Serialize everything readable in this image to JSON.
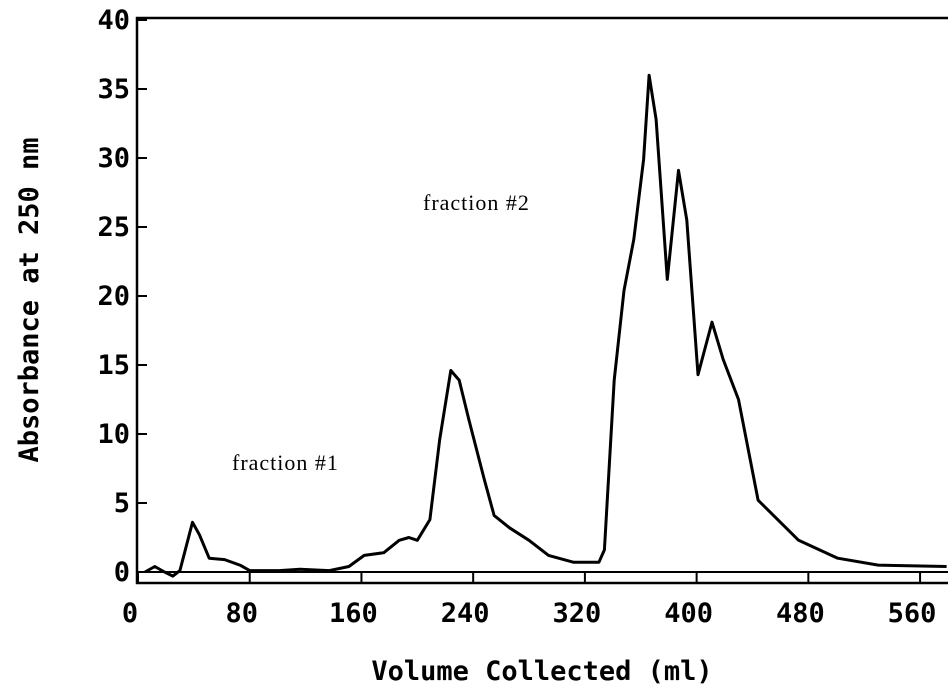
{
  "chart_data": {
    "type": "line",
    "x_label": "Volume Collected (ml)",
    "y_label": "Absorbance at 250 nm",
    "annotations": [
      "fraction #1",
      "fraction #2"
    ],
    "series": [
      {
        "name": "absorbance",
        "color": "#000000",
        "x": [
          5,
          12,
          19,
          25,
          30,
          39,
          44,
          51,
          62,
          73,
          80,
          101,
          116,
          137,
          151,
          162,
          176,
          187,
          194,
          200,
          209,
          216,
          224,
          230,
          237,
          248,
          255,
          266,
          280,
          294,
          312,
          330,
          334,
          341,
          348,
          355,
          362,
          366,
          371,
          379,
          387,
          393,
          401,
          411,
          419,
          430,
          444,
          473,
          501,
          530,
          579
        ],
        "values": [
          0,
          0.4,
          0,
          -0.3,
          0.1,
          3.6,
          2.7,
          1,
          0.9,
          0.5,
          0.1,
          0.1,
          0.2,
          0.1,
          0.4,
          1.2,
          1.4,
          2.3,
          2.5,
          2.3,
          3.8,
          9.6,
          14.6,
          13.9,
          11,
          6.7,
          4.1,
          3.2,
          2.3,
          1.2,
          0.7,
          0.7,
          1.6,
          13.9,
          20.4,
          24.1,
          29.9,
          36,
          32.8,
          21.2,
          29.1,
          25.5,
          14.3,
          18.1,
          15.4,
          12.5,
          5.2,
          2.3,
          1,
          0.5,
          0.4
        ]
      }
    ],
    "xlim": [
      0,
      580
    ],
    "xticks": [
      0,
      80,
      160,
      240,
      320,
      400,
      480,
      560
    ],
    "ylim": [
      0,
      40
    ],
    "yticks": [
      0,
      5,
      10,
      15,
      20,
      25,
      30,
      35,
      40
    ]
  }
}
